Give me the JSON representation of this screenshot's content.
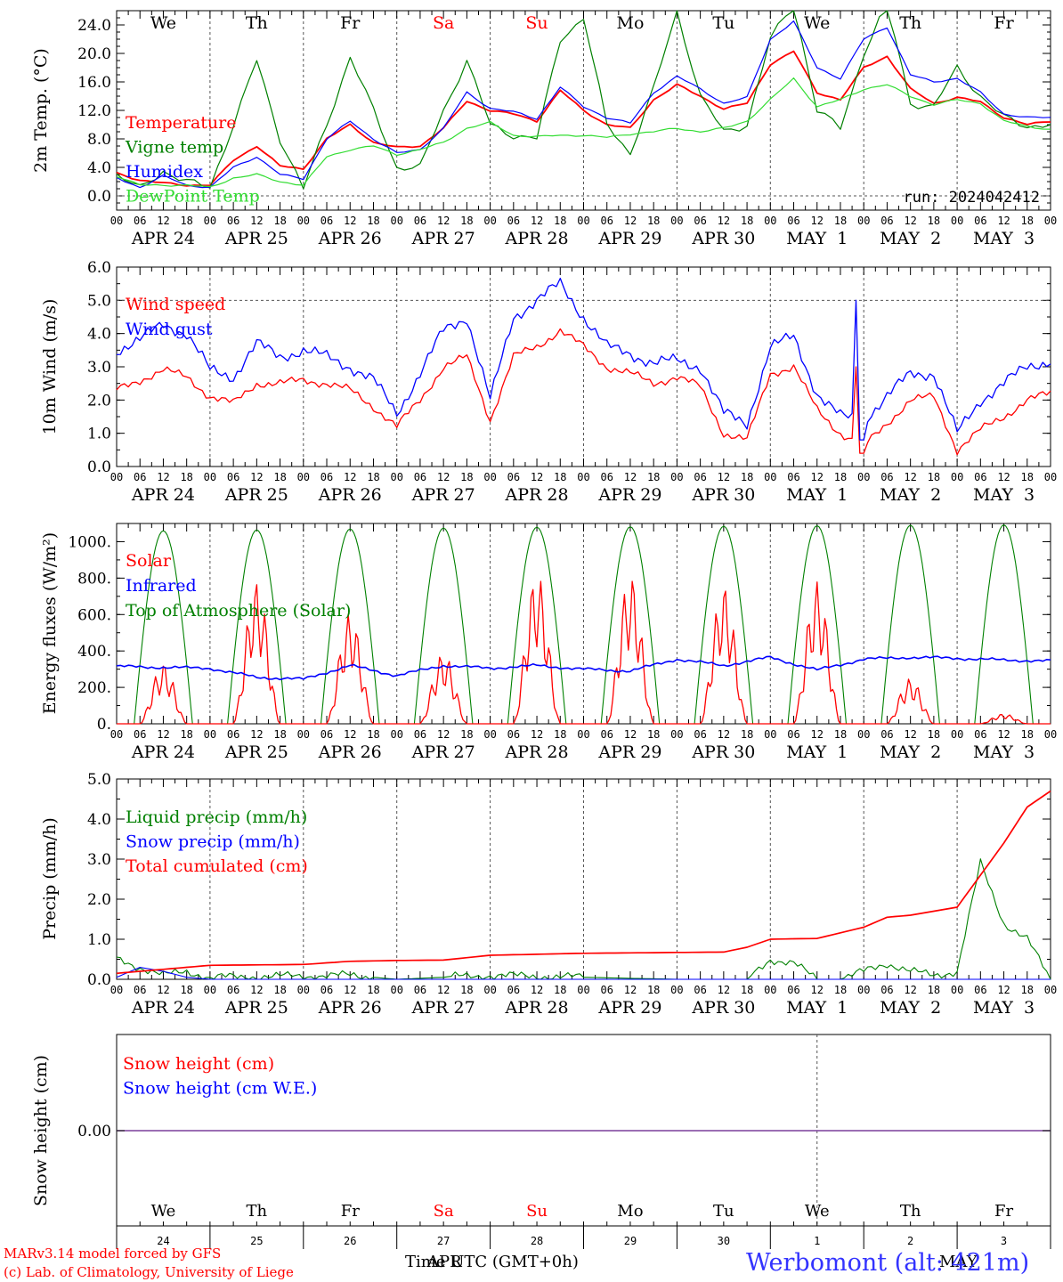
{
  "days": {
    "top": [
      "We",
      "Th",
      "Fr",
      "Sa",
      "Su",
      "Mo",
      "Tu",
      "We",
      "Th",
      "Fr"
    ],
    "bottom": [
      "We",
      "Th",
      "Fr",
      "Sa",
      "Su",
      "Mo",
      "Tu",
      "We",
      "Th",
      "Fr"
    ],
    "weekend_color": "#ff0000",
    "normal_color": "#000000"
  },
  "date_labels": [
    "APR 24",
    "APR 25",
    "APR 26",
    "APR 27",
    "APR 28",
    "APR 29",
    "APR 30",
    "MAY  1",
    "MAY  2",
    "MAY  3"
  ],
  "hour_labels": [
    "00",
    "06",
    "12",
    "18"
  ],
  "last_hour_label": "00",
  "day_numbers": [
    "24",
    "25",
    "26",
    "27",
    "28",
    "29",
    "30",
    "1",
    "2",
    "3"
  ],
  "panels": {
    "temp": {
      "ylabel": "2m Temp. (°C)",
      "yticks": [
        "0.0",
        "4.0",
        "8.0",
        "12.0",
        "16.0",
        "20.0",
        "24.0"
      ],
      "run_label": "run: 2024042412",
      "legend": [
        {
          "label": "Temperature",
          "color": "#ff0000"
        },
        {
          "label": "Vigne temp",
          "color": "#008000"
        },
        {
          "label": "Humidex",
          "color": "#0000ff"
        },
        {
          "label": "DewPoint Temp",
          "color": "#33dd33"
        }
      ]
    },
    "wind": {
      "ylabel": "10m Wind (m/s)",
      "yticks": [
        "0.0",
        "1.0",
        "2.0",
        "3.0",
        "4.0",
        "5.0",
        "6.0"
      ],
      "legend": [
        {
          "label": "Wind speed",
          "color": "#ff0000"
        },
        {
          "label": "Wind gust",
          "color": "#0000ff"
        }
      ]
    },
    "energy": {
      "ylabel": "Energy fluxes (W/m²)",
      "yticks": [
        "0.",
        "200.",
        "400.",
        "600.",
        "800.",
        "1000."
      ],
      "legend": [
        {
          "label": "Solar",
          "color": "#ff0000"
        },
        {
          "label": "Infrared",
          "color": "#0000ff"
        },
        {
          "label": "Top of Atmosphere (Solar)",
          "color": "#008000"
        }
      ]
    },
    "precip": {
      "ylabel": "Precip (mm/h)",
      "yticks": [
        "0.0",
        "1.0",
        "2.0",
        "3.0",
        "4.0",
        "5.0"
      ],
      "legend": [
        {
          "label": "Liquid precip (mm/h)",
          "color": "#008000"
        },
        {
          "label": "Snow precip (mm/h)",
          "color": "#0000ff"
        },
        {
          "label": "Total cumulated (cm)",
          "color": "#ff0000"
        }
      ]
    },
    "snow": {
      "ylabel": "Snow height (cm)",
      "yticks": [
        "0.00"
      ],
      "legend": [
        {
          "label": "Snow height (cm)",
          "color": "#ff0000"
        },
        {
          "label": "Snow height (cm W.E.)",
          "color": "#0000ff"
        }
      ]
    }
  },
  "footer": {
    "credit1": "MARv3.14 model forced by GFS",
    "credit2": "(c) Lab. of Climatology, University of Liege",
    "xlabel": "Time UTC (GMT+0h)",
    "month_apr": "APR",
    "month_may": "MAY",
    "station": "Werbomont (alt: 421m)"
  },
  "chart_data": [
    {
      "type": "line",
      "ylabel": "2m Temp. (°C)",
      "ylim": [
        -2,
        26
      ],
      "x_unit": "hours since APR 24 00 UTC",
      "series": [
        {
          "name": "Temperature",
          "color": "#ff0000",
          "x": [
            0,
            6,
            12,
            18,
            24,
            30,
            36,
            42,
            48,
            54,
            60,
            66,
            72,
            78,
            84,
            90,
            96,
            102,
            108,
            114,
            120,
            126,
            132,
            138,
            144,
            150,
            156,
            162,
            168,
            174,
            180,
            186,
            192,
            198,
            204,
            210,
            216,
            222,
            228,
            234,
            240
          ],
          "values": [
            3.2,
            2.2,
            1.8,
            1.5,
            1.5,
            5,
            7,
            4.2,
            3.8,
            8,
            10,
            7.5,
            6.8,
            7,
            9.5,
            13.3,
            12,
            11.5,
            10.5,
            14.8,
            12,
            10,
            9.5,
            13.5,
            15.6,
            14,
            12.2,
            13,
            18.5,
            20.3,
            14.5,
            13.5,
            18,
            19.6,
            15,
            13,
            13.8,
            13.2,
            11,
            10,
            10.5
          ]
        },
        {
          "name": "Vigne temp",
          "color": "#008000",
          "x": [
            0,
            6,
            12,
            18,
            24,
            30,
            36,
            42,
            48,
            54,
            60,
            66,
            72,
            78,
            84,
            90,
            96,
            102,
            108,
            114,
            120,
            126,
            132,
            138,
            144,
            150,
            156,
            162,
            168,
            174,
            180,
            186,
            192,
            198,
            204,
            210,
            216,
            222,
            228,
            234,
            240
          ],
          "values": [
            3,
            1,
            3.5,
            2,
            1.2,
            10,
            19,
            8,
            1,
            10,
            19.5,
            12,
            4,
            4,
            12,
            19,
            10,
            8.5,
            8,
            22,
            25,
            10,
            6,
            15,
            26,
            14,
            9,
            10,
            22,
            27,
            12,
            9.5,
            20,
            27,
            13,
            12.5,
            18,
            14,
            11,
            9.8,
            10
          ]
        },
        {
          "name": "Humidex",
          "color": "#0000ff",
          "x": [
            0,
            6,
            12,
            18,
            24,
            30,
            36,
            42,
            48,
            54,
            60,
            66,
            72,
            78,
            84,
            90,
            96,
            102,
            108,
            114,
            120,
            126,
            132,
            138,
            144,
            150,
            156,
            162,
            168,
            174,
            180,
            186,
            192,
            198,
            204,
            210,
            216,
            222,
            228,
            234,
            240
          ],
          "values": [
            2.5,
            1.2,
            2.8,
            1.5,
            1.2,
            4,
            5.5,
            3,
            2.4,
            8,
            10.5,
            8,
            6,
            6.5,
            9.5,
            14.5,
            12.3,
            11.8,
            10.8,
            15.3,
            12.5,
            11,
            10.2,
            14.5,
            16.8,
            15,
            13,
            13.8,
            22,
            24.5,
            18,
            16.5,
            22,
            23.7,
            17,
            16,
            16.5,
            14.5,
            11.5,
            11,
            11
          ]
        },
        {
          "name": "DewPoint Temp",
          "color": "#33dd33",
          "x": [
            0,
            6,
            12,
            18,
            24,
            30,
            36,
            42,
            48,
            54,
            60,
            66,
            72,
            78,
            84,
            90,
            96,
            102,
            108,
            114,
            120,
            126,
            132,
            138,
            144,
            150,
            156,
            162,
            168,
            174,
            180,
            186,
            192,
            198,
            204,
            210,
            216,
            222,
            228,
            234,
            240
          ],
          "values": [
            2.8,
            1.5,
            1.5,
            1.5,
            1.2,
            2.5,
            3,
            2,
            1.5,
            5.5,
            6.5,
            7,
            5.8,
            6.5,
            7.5,
            9.5,
            10.3,
            8.5,
            8.3,
            8.5,
            8.5,
            8.2,
            8.7,
            9,
            9.5,
            9,
            9.5,
            10.5,
            13.5,
            16.5,
            12.5,
            13.5,
            15,
            15.6,
            14,
            12.8,
            13.5,
            13,
            10.5,
            9.8,
            9.3
          ]
        }
      ]
    },
    {
      "type": "line",
      "ylabel": "10m Wind (m/s)",
      "ylim": [
        0,
        6
      ],
      "x_unit": "hours since APR 24 00 UTC",
      "series": [
        {
          "name": "Wind speed",
          "color": "#ff0000",
          "x": [
            0,
            6,
            12,
            18,
            24,
            30,
            36,
            42,
            48,
            54,
            60,
            66,
            72,
            78,
            84,
            90,
            96,
            102,
            108,
            114,
            120,
            126,
            132,
            138,
            144,
            150,
            156,
            162,
            168,
            174,
            180,
            186,
            192,
            198,
            204,
            210,
            216,
            222,
            228,
            234,
            240
          ],
          "values": [
            2.3,
            2.6,
            2.9,
            2.7,
            2.1,
            1.9,
            2.5,
            2.5,
            2.6,
            2.5,
            2.3,
            1.8,
            1.2,
            2.0,
            3.0,
            3.3,
            1.4,
            3.3,
            3.6,
            4.1,
            3.6,
            3.0,
            2.8,
            2.5,
            2.7,
            2.4,
            1.0,
            0.8,
            2.8,
            3.0,
            1.7,
            1.0,
            0.6,
            1.3,
            2.0,
            2.1,
            0.5,
            1.1,
            1.5,
            2.0,
            2.2
          ]
        },
        {
          "name": "Wind gust",
          "color": "#0000ff",
          "x": [
            0,
            6,
            12,
            18,
            24,
            30,
            36,
            42,
            48,
            54,
            60,
            66,
            72,
            78,
            84,
            90,
            96,
            102,
            108,
            114,
            120,
            126,
            132,
            138,
            144,
            150,
            156,
            162,
            168,
            174,
            180,
            186,
            192,
            198,
            204,
            210,
            216,
            222,
            228,
            234,
            240
          ],
          "values": [
            3.5,
            3.8,
            4.3,
            4.0,
            2.9,
            2.7,
            3.7,
            3.3,
            3.5,
            3.3,
            3.0,
            2.6,
            1.6,
            2.8,
            4.1,
            4.5,
            2.0,
            4.5,
            5.0,
            5.5,
            4.5,
            3.6,
            3.4,
            3.1,
            3.2,
            3.0,
            1.6,
            1.3,
            3.6,
            3.9,
            2.2,
            1.5,
            1.4,
            2.1,
            2.8,
            2.8,
            1.0,
            2.0,
            2.5,
            3.0,
            3.2
          ]
        }
      ]
    },
    {
      "type": "line",
      "ylabel": "Energy fluxes (W/m²)",
      "ylim": [
        0,
        1100
      ],
      "x_unit": "hours since APR 24 00 UTC",
      "series": [
        {
          "name": "Solar",
          "color": "#ff0000",
          "day_peaks": [
            330,
            780,
            610,
            390,
            830,
            820,
            760,
            780,
            250,
            55
          ]
        },
        {
          "name": "Infrared",
          "color": "#0000ff",
          "x": [
            0,
            24,
            36,
            48,
            60,
            72,
            84,
            96,
            108,
            120,
            132,
            144,
            156,
            168,
            180,
            192,
            204,
            216,
            228,
            240
          ],
          "values": [
            315,
            305,
            255,
            245,
            320,
            265,
            320,
            305,
            320,
            300,
            290,
            355,
            320,
            365,
            295,
            355,
            365,
            360,
            350,
            345
          ]
        },
        {
          "name": "Top of Atmosphere (Solar)",
          "color": "#008000",
          "day_peaks": [
            1060,
            1065,
            1070,
            1075,
            1080,
            1082,
            1085,
            1088,
            1090,
            1092
          ]
        }
      ]
    },
    {
      "type": "line",
      "ylabel": "Precip (mm/h)",
      "ylim": [
        0,
        5
      ],
      "x_unit": "hours since APR 24 00 UTC",
      "series": [
        {
          "name": "Liquid precip (mm/h)",
          "color": "#008000",
          "x": [
            0,
            6,
            12,
            18,
            24,
            60,
            72,
            96,
            120,
            144,
            156,
            162,
            168,
            174,
            180,
            186,
            192,
            198,
            204,
            210,
            216,
            222,
            228,
            234,
            240
          ],
          "values": [
            0.5,
            0.3,
            0.1,
            0.2,
            0.05,
            0.1,
            0,
            0.1,
            0.05,
            0,
            0,
            0,
            0.5,
            0.4,
            0,
            0,
            0.2,
            0.4,
            0.2,
            0.1,
            0.2,
            2.9,
            1.4,
            1.0,
            0
          ]
        },
        {
          "name": "Snow precip (mm/h)",
          "color": "#0000ff",
          "x": [
            0,
            6,
            12,
            18,
            24,
            240
          ],
          "values": [
            0.05,
            0.3,
            0.2,
            0.05,
            0,
            0
          ]
        },
        {
          "name": "Total cumulated (cm)",
          "color": "#ff0000",
          "x": [
            0,
            24,
            48,
            60,
            72,
            84,
            96,
            120,
            144,
            156,
            162,
            168,
            180,
            192,
            198,
            204,
            210,
            216,
            222,
            228,
            234,
            240
          ],
          "values": [
            0.15,
            0.35,
            0.37,
            0.45,
            0.47,
            0.48,
            0.6,
            0.65,
            0.67,
            0.68,
            0.8,
            1.0,
            1.02,
            1.3,
            1.55,
            1.6,
            1.7,
            1.8,
            2.6,
            3.4,
            4.3,
            4.7
          ]
        }
      ]
    },
    {
      "type": "line",
      "ylabel": "Snow height (cm)",
      "x_unit": "hours since APR 24 00 UTC",
      "series": [
        {
          "name": "Snow height (cm)",
          "color": "#ff0000",
          "x": [
            0,
            240
          ],
          "values": [
            0,
            0
          ]
        },
        {
          "name": "Snow height (cm W.E.)",
          "color": "#0000ff",
          "x": [
            0,
            240
          ],
          "values": [
            0,
            0
          ]
        }
      ]
    }
  ]
}
